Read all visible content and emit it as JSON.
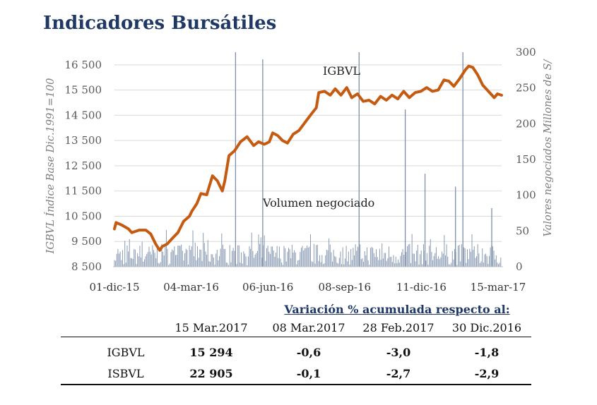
{
  "title": "Indicadores Bursátiles",
  "chart_data": {
    "type": "line+bar",
    "title": "Indicadores Bursátiles",
    "left_axis": {
      "label": "IGBVL Índice Base Dic.1991=100",
      "ylim": [
        8500,
        17000
      ],
      "ticks": [
        8500,
        9500,
        10500,
        11500,
        12500,
        13500,
        14500,
        15500,
        16500
      ],
      "tick_labels": [
        "8 500",
        "9 500",
        "10 500",
        "11 500",
        "12 500",
        "13 500",
        "14 500",
        "15 500",
        "16 500"
      ]
    },
    "right_axis": {
      "label": "Valores negociados Millones de S/",
      "ylim": [
        0,
        300
      ],
      "ticks": [
        0,
        50,
        100,
        150,
        200,
        250,
        300
      ],
      "tick_labels": [
        "0",
        "50",
        "100",
        "150",
        "200",
        "250",
        "300"
      ]
    },
    "x_axis": {
      "range": [
        "2015-12-01",
        "2017-03-15"
      ],
      "tick_labels": [
        "01-dic-15",
        "04-mar-16",
        "06-jun-16",
        "08-sep-16",
        "11-dic-16",
        "15-mar-17"
      ]
    },
    "grid": "horizontal",
    "annotations": [
      "IGBVL",
      "Volumen negociado"
    ],
    "line_color": "#c55a11",
    "bar_color": "#8496b0",
    "series": [
      {
        "name": "IGBVL",
        "type": "line",
        "axis": "left",
        "points": [
          [
            "2015-12-01",
            10000
          ],
          [
            "2015-12-03",
            10250
          ],
          [
            "2015-12-10",
            10150
          ],
          [
            "2015-12-18",
            10000
          ],
          [
            "2015-12-22",
            9850
          ],
          [
            "2015-12-31",
            9950
          ],
          [
            "2016-01-08",
            9950
          ],
          [
            "2016-01-14",
            9800
          ],
          [
            "2016-01-20",
            9400
          ],
          [
            "2016-01-25",
            9150
          ],
          [
            "2016-01-28",
            9300
          ],
          [
            "2016-02-03",
            9400
          ],
          [
            "2016-02-10",
            9650
          ],
          [
            "2016-02-16",
            9850
          ],
          [
            "2016-02-23",
            10300
          ],
          [
            "2016-03-01",
            10500
          ],
          [
            "2016-03-04",
            10700
          ],
          [
            "2016-03-10",
            11000
          ],
          [
            "2016-03-15",
            11400
          ],
          [
            "2016-03-22",
            11350
          ],
          [
            "2016-03-29",
            12100
          ],
          [
            "2016-04-04",
            11900
          ],
          [
            "2016-04-10",
            11500
          ],
          [
            "2016-04-13",
            11900
          ],
          [
            "2016-04-18",
            12900
          ],
          [
            "2016-04-25",
            13100
          ],
          [
            "2016-05-02",
            13450
          ],
          [
            "2016-05-10",
            13650
          ],
          [
            "2016-05-18",
            13300
          ],
          [
            "2016-05-24",
            13450
          ],
          [
            "2016-05-31",
            13350
          ],
          [
            "2016-06-06",
            13450
          ],
          [
            "2016-06-10",
            13800
          ],
          [
            "2016-06-16",
            13700
          ],
          [
            "2016-06-22",
            13500
          ],
          [
            "2016-06-28",
            13400
          ],
          [
            "2016-07-05",
            13750
          ],
          [
            "2016-07-12",
            13900
          ],
          [
            "2016-07-20",
            14250
          ],
          [
            "2016-07-27",
            14550
          ],
          [
            "2016-08-02",
            14800
          ],
          [
            "2016-08-05",
            15400
          ],
          [
            "2016-08-12",
            15450
          ],
          [
            "2016-08-19",
            15300
          ],
          [
            "2016-08-25",
            15550
          ],
          [
            "2016-09-01",
            15300
          ],
          [
            "2016-09-08",
            15600
          ],
          [
            "2016-09-14",
            15200
          ],
          [
            "2016-09-21",
            15350
          ],
          [
            "2016-09-28",
            15050
          ],
          [
            "2016-10-05",
            15100
          ],
          [
            "2016-10-12",
            14950
          ],
          [
            "2016-10-19",
            15250
          ],
          [
            "2016-10-26",
            15100
          ],
          [
            "2016-11-02",
            15300
          ],
          [
            "2016-11-09",
            15150
          ],
          [
            "2016-11-16",
            15450
          ],
          [
            "2016-11-23",
            15200
          ],
          [
            "2016-11-30",
            15400
          ],
          [
            "2016-12-07",
            15450
          ],
          [
            "2016-12-14",
            15600
          ],
          [
            "2016-12-21",
            15450
          ],
          [
            "2016-12-28",
            15500
          ],
          [
            "2017-01-04",
            15900
          ],
          [
            "2017-01-10",
            15850
          ],
          [
            "2017-01-16",
            15650
          ],
          [
            "2017-01-23",
            15950
          ],
          [
            "2017-01-30",
            16300
          ],
          [
            "2017-02-03",
            16450
          ],
          [
            "2017-02-08",
            16400
          ],
          [
            "2017-02-14",
            16100
          ],
          [
            "2017-02-20",
            15700
          ],
          [
            "2017-02-27",
            15450
          ],
          [
            "2017-03-06",
            15200
          ],
          [
            "2017-03-10",
            15350
          ],
          [
            "2017-03-15",
            15294
          ]
        ]
      },
      {
        "name": "Volumen negociado",
        "type": "bar",
        "axis": "right",
        "spikes": [
          [
            "2016-04-26",
            300
          ],
          [
            "2016-05-29",
            290
          ],
          [
            "2016-09-23",
            300
          ],
          [
            "2016-11-18",
            220
          ],
          [
            "2016-12-12",
            130
          ],
          [
            "2017-01-18",
            112
          ],
          [
            "2017-01-27",
            300
          ],
          [
            "2017-03-03",
            82
          ]
        ],
        "baseline_range": [
          2,
          32
        ]
      }
    ]
  },
  "table": {
    "group_header": "Variación % acumulada respecto al:",
    "columns": [
      "15 Mar.2017",
      "08 Mar.2017",
      "28 Feb.2017",
      "30 Dic.2016"
    ],
    "rows": [
      {
        "label": "IGBVL",
        "level": "15 294",
        "v1": "-0,6",
        "v2": "-3,0",
        "v3": "-1,8"
      },
      {
        "label": "ISBVL",
        "level": "22 905",
        "v1": "-0,1",
        "v2": "-2,7",
        "v3": "-2,9"
      }
    ]
  }
}
